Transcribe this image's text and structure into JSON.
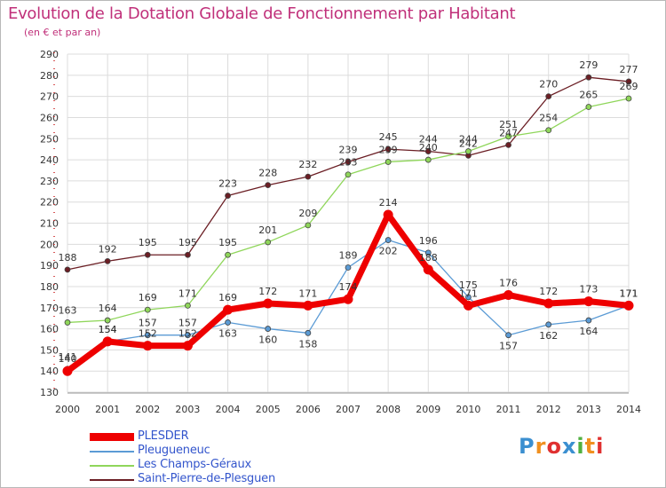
{
  "title": "Evolution de la Dotation Globale de Fonctionnement par Habitant",
  "subtitle": "(en € et par an)",
  "logo": {
    "letters": [
      "P",
      "r",
      "o",
      "x",
      "i",
      "t",
      "i"
    ],
    "colors": [
      "#3b8fd0",
      "#f09020",
      "#e03030",
      "#3b8fd0",
      "#50b040",
      "#f09020",
      "#e03030"
    ]
  },
  "chart_data": {
    "type": "line",
    "x": [
      2000,
      2001,
      2002,
      2003,
      2004,
      2005,
      2006,
      2007,
      2008,
      2009,
      2010,
      2011,
      2012,
      2013,
      2014
    ],
    "ylim": [
      130,
      290
    ],
    "yticks": [
      130,
      140,
      150,
      160,
      170,
      180,
      190,
      200,
      210,
      220,
      230,
      240,
      250,
      260,
      270,
      280,
      290
    ],
    "grid": true,
    "legend_position": "bottom-left",
    "series": [
      {
        "name": "PLESDER",
        "color": "#ee0000",
        "values": [
          140,
          154,
          152,
          152,
          169,
          172,
          171,
          174,
          214,
          188,
          171,
          176,
          172,
          173,
          171
        ]
      },
      {
        "name": "Pleugueneuc",
        "color": "#5b9bd5",
        "values": [
          141,
          154,
          157,
          157,
          163,
          160,
          158,
          189,
          202,
          196,
          175,
          157,
          162,
          164,
          171
        ]
      },
      {
        "name": "Les Champs-Géraux",
        "color": "#8fd65a",
        "values": [
          163,
          164,
          169,
          171,
          195,
          201,
          209,
          233,
          239,
          240,
          244,
          251,
          254,
          265,
          269
        ]
      },
      {
        "name": "Saint-Pierre-de-Plesguen",
        "color": "#6b1e24",
        "values": [
          188,
          192,
          195,
          195,
          223,
          228,
          232,
          239,
          245,
          244,
          242,
          247,
          270,
          279,
          277
        ]
      }
    ]
  }
}
